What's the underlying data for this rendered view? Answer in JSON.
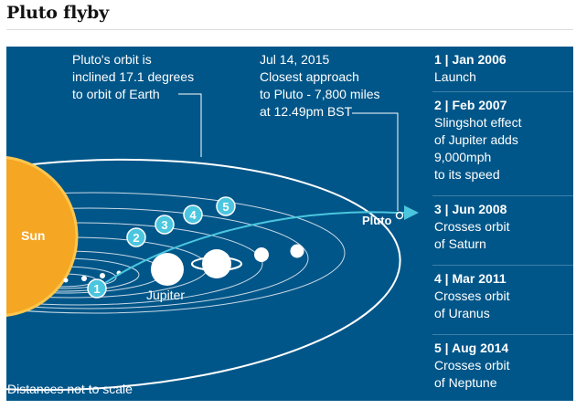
{
  "title": "Pluto flyby",
  "colors": {
    "panel": "#005689",
    "orbit": "#ffffff",
    "sun": "#f5a623",
    "sun_edge": "#ffc64d",
    "trajectory": "#4bc6df",
    "marker": "#4bc6df"
  },
  "labels": {
    "sun": "Sun",
    "jupiter": "Jupiter",
    "pluto": "Pluto",
    "scale_note": "Distances not to scale"
  },
  "orbit_note": [
    "Pluto's orbit is",
    "inclined 17.1 degrees",
    "to orbit of Earth"
  ],
  "approach_note": [
    "Jul 14, 2015",
    "Closest approach",
    "to Pluto - 7,800 miles",
    "at 12.49pm BST"
  ],
  "markers": [
    "1",
    "2",
    "3",
    "4",
    "5"
  ],
  "events": [
    {
      "head": "1 | Jan 2006",
      "lines": [
        "Launch"
      ]
    },
    {
      "head": "2 | Feb 2007",
      "lines": [
        "Slingshot effect",
        "of Jupiter adds",
        "9,000mph",
        "to its speed"
      ]
    },
    {
      "head": "3 | Jun 2008",
      "lines": [
        "Crosses orbit",
        "of Saturn"
      ]
    },
    {
      "head": "4 | Mar 2011",
      "lines": [
        "Crosses orbit",
        "of Uranus"
      ]
    },
    {
      "head": "5 | Aug 2014",
      "lines": [
        "Crosses orbit",
        "of Neptune"
      ]
    }
  ]
}
